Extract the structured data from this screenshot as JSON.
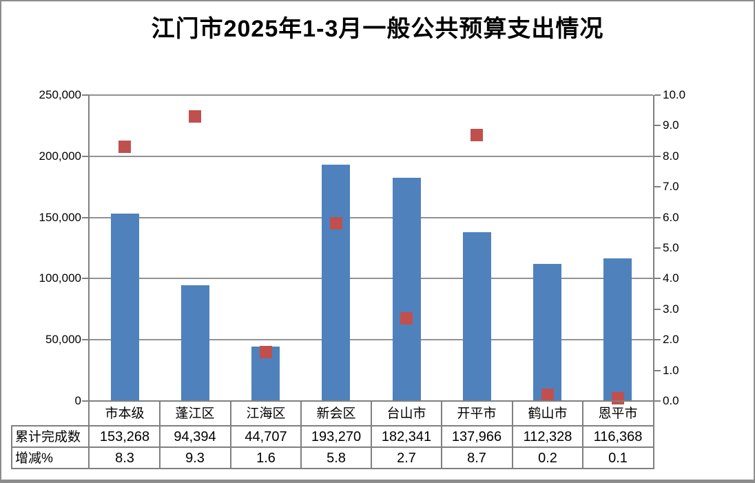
{
  "title": "江门市2025年1-3月一般公共预算支出情况",
  "chart_data": {
    "type": "combo-bar-scatter",
    "title": "江门市2025年1-3月一般公共预算支出情况",
    "categories": [
      "市本级",
      "蓬江区",
      "江海区",
      "新会区",
      "台山市",
      "开平市",
      "鹤山市",
      "恩平市"
    ],
    "series": [
      {
        "name": "累计完成数",
        "type": "bar",
        "axis": "left",
        "color": "#4F81BD",
        "values": [
          153268,
          94394,
          44707,
          193270,
          182341,
          137966,
          112328,
          116368
        ],
        "display": [
          "153,268",
          "94,394",
          "44,707",
          "193,270",
          "182,341",
          "137,966",
          "112,328",
          "116,368"
        ]
      },
      {
        "name": "增减%",
        "type": "scatter-square",
        "axis": "right",
        "color": "#C0504D",
        "values": [
          8.3,
          9.3,
          1.6,
          5.8,
          2.7,
          8.7,
          0.2,
          0.1
        ],
        "display": [
          "8.3",
          "9.3",
          "1.6",
          "5.8",
          "2.7",
          "8.7",
          "0.2",
          "0.1"
        ]
      }
    ],
    "left_axis": {
      "min": 0,
      "max": 250000,
      "step": 50000,
      "tick_labels": [
        "0",
        "50,000",
        "100,000",
        "150,000",
        "200,000",
        "250,000"
      ]
    },
    "right_axis": {
      "min": 0,
      "max": 10,
      "step": 1,
      "tick_labels": [
        "0.0",
        "1.0",
        "2.0",
        "3.0",
        "4.0",
        "5.0",
        "6.0",
        "7.0",
        "8.0",
        "9.0",
        "10.0"
      ]
    },
    "grid": true,
    "legend_position": "none",
    "data_table_shown": true
  },
  "colors": {
    "bar": "#4F81BD",
    "marker": "#C0504D",
    "gridline": "#919191",
    "axis": "#7F7F7F",
    "text": "#000000",
    "background": "#FFFFFF"
  }
}
